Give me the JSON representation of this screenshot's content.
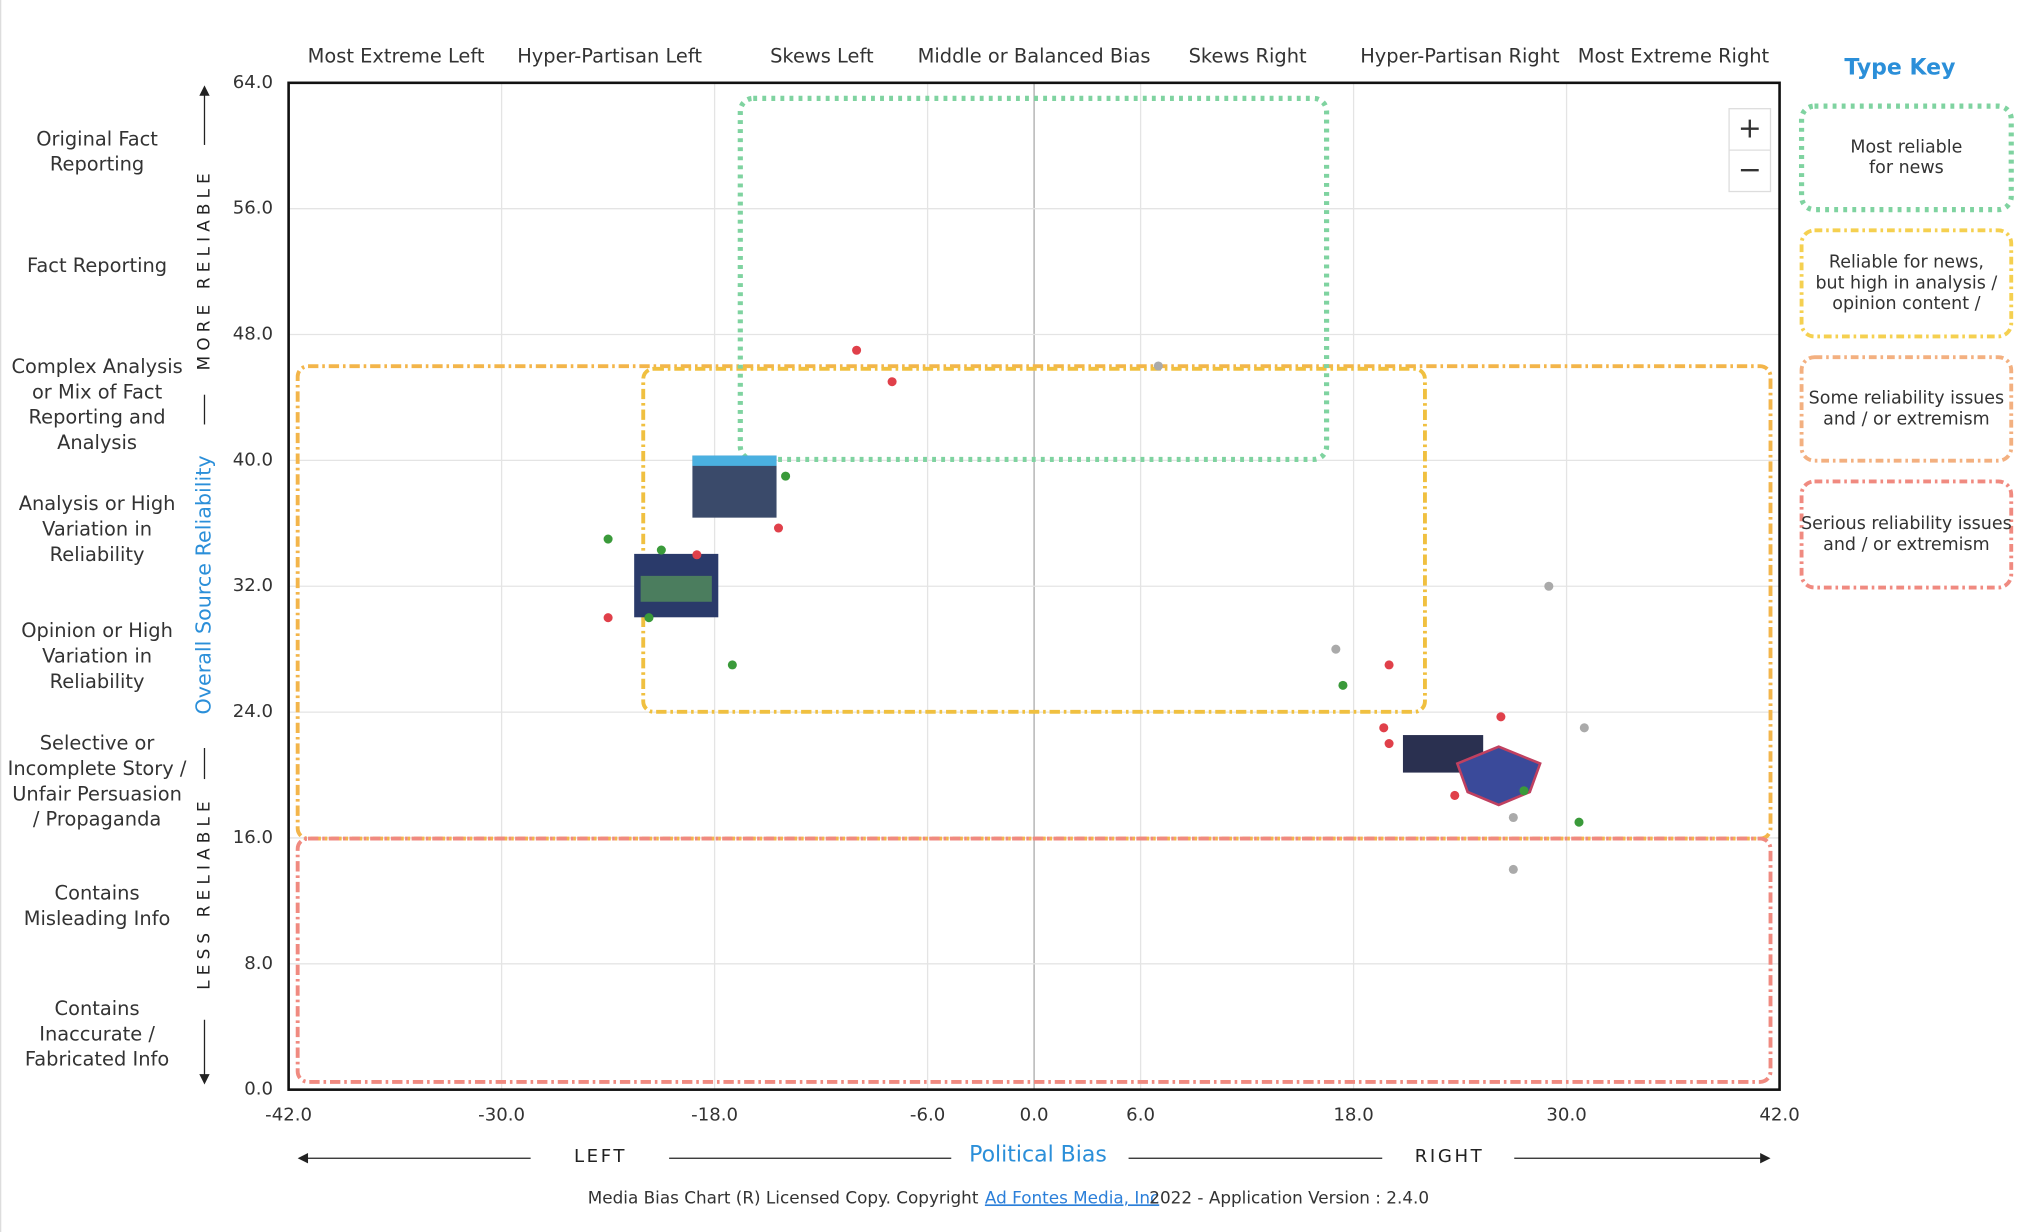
{
  "chart_data": {
    "type": "scatter",
    "xlabel": "Political Bias",
    "ylabel": "Overall Source Reliability",
    "xlim": [
      -42,
      42
    ],
    "ylim": [
      0,
      64
    ],
    "xticks": [
      {
        "value": -42,
        "label": "-42.0"
      },
      {
        "value": -30,
        "label": "-30.0"
      },
      {
        "value": -18,
        "label": "-18.0"
      },
      {
        "value": -6,
        "label": "-6.0"
      },
      {
        "value": 0,
        "label": "0.0"
      },
      {
        "value": 6,
        "label": "6.0"
      },
      {
        "value": 18,
        "label": "18.0"
      },
      {
        "value": 30,
        "label": "30.0"
      },
      {
        "value": 42,
        "label": "42.0"
      }
    ],
    "yticks": [
      {
        "value": 0,
        "label": "0.0"
      },
      {
        "value": 8,
        "label": "8.0"
      },
      {
        "value": 16,
        "label": "16.0"
      },
      {
        "value": 24,
        "label": "24.0"
      },
      {
        "value": 32,
        "label": "32.0"
      },
      {
        "value": 40,
        "label": "40.0"
      },
      {
        "value": 48,
        "label": "48.0"
      },
      {
        "value": 56,
        "label": "56.0"
      },
      {
        "value": 64,
        "label": "64.0"
      }
    ],
    "grid": true,
    "series": [
      {
        "color": "#e0404a",
        "x": [
          -10,
          -8,
          -14.4,
          -19,
          -24,
          20,
          26.3,
          19.7,
          20,
          23.7
        ],
        "values": [
          47,
          45,
          35.7,
          34,
          30,
          27,
          23.7,
          23,
          22,
          18.7
        ]
      },
      {
        "color": "#3a9a3a",
        "x": [
          -14,
          -24,
          -21,
          -21.7,
          -17,
          17.4,
          27.6,
          30.7
        ],
        "values": [
          39,
          35,
          34.3,
          30,
          27,
          25.7,
          19,
          17
        ]
      },
      {
        "color": "#aaaaaa",
        "x": [
          7,
          29,
          17,
          31,
          27,
          27
        ],
        "values": [
          46,
          32,
          28,
          23,
          17.3,
          14
        ]
      }
    ]
  },
  "bias_headers": [
    "Most Extreme Left",
    "Hyper-Partisan Left",
    "Skews Left",
    "Middle or Balanced Bias",
    "Skews Right",
    "Hyper-Partisan Right",
    "Most Extreme Right"
  ],
  "reliability_labels": [
    [
      "Original Fact",
      "Reporting"
    ],
    [
      "Fact Reporting"
    ],
    [
      "Complex Analysis",
      "or Mix of Fact",
      "Reporting and",
      "Analysis"
    ],
    [
      "Analysis or High",
      "Variation in",
      "Reliability"
    ],
    [
      "Opinion or High",
      "Variation in",
      "Reliability"
    ],
    [
      "Selective or",
      "Incomplete Story /",
      "Unfair Persuasion",
      "/ Propaganda"
    ],
    [
      "Contains",
      "Misleading Info"
    ],
    [
      "Contains",
      "Inaccurate /",
      "Fabricated Info"
    ]
  ],
  "more_reliable": "MORE RELIABLE",
  "less_reliable": "LESS RELIABLE",
  "left": "LEFT",
  "right": "RIGHT",
  "zoom_in": "+",
  "zoom_out": "−",
  "type_key": {
    "title": "Type Key",
    "items": [
      [
        "Most reliable",
        "for news"
      ],
      [
        "Reliable for news,",
        "but high in analysis /",
        "opinion content /"
      ],
      [
        "Some reliability issues",
        "and / or extremism"
      ],
      [
        "Serious reliability issues",
        "and / or extremism"
      ]
    ]
  },
  "footer": {
    "text": "Media Bias Chart (R) Licensed Copy. Copyright",
    "link": "Ad Fontes Media, Inc",
    "version": "2022  - Application Version : 2.4.0"
  }
}
